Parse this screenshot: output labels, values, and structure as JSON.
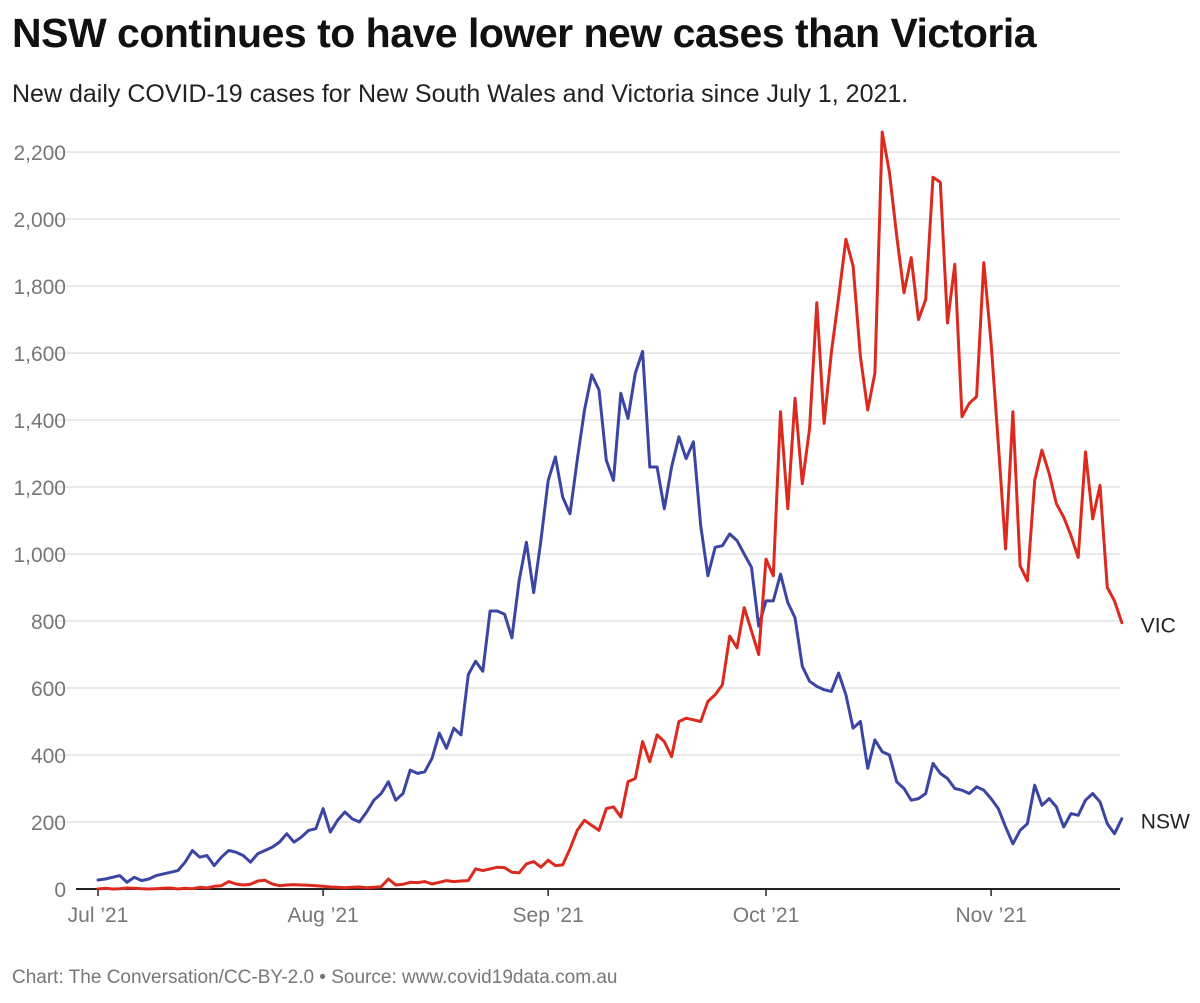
{
  "chart_data": {
    "type": "line",
    "title": "NSW continues to have lower new cases than Victoria",
    "subtitle": "New daily COVID-19 cases for New South Wales and Victoria since July 1, 2021.",
    "source": "Chart: The Conversation/CC-BY-2.0 • Source: www.covid19data.com.au",
    "xlabel": "",
    "ylabel": "",
    "x_start": "2021-07-01",
    "x_tick_labels": [
      "Jul ’21",
      "Aug ’21",
      "Sep ’21",
      "Oct ’21",
      "Nov ’21"
    ],
    "x_tick_days": [
      0,
      31,
      62,
      92,
      123
    ],
    "y_ticks": [
      0,
      200,
      400,
      600,
      800,
      1000,
      1200,
      1400,
      1600,
      1800,
      2000,
      2200
    ],
    "y_tick_labels": [
      "0",
      "200",
      "400",
      "600",
      "800",
      "1,000",
      "1,200",
      "1,400",
      "1,600",
      "1,800",
      "2,000",
      "2,200"
    ],
    "ylim": [
      0,
      2260
    ],
    "xlim": [
      0,
      138
    ],
    "grid": true,
    "colors": {
      "NSW": "#3b46a3",
      "VIC": "#dc2a1e",
      "grid": "#e3e3e3",
      "axis": "#222222"
    },
    "series": [
      {
        "name": "NSW",
        "label": "NSW",
        "values": [
          27,
          30,
          35,
          40,
          20,
          35,
          25,
          30,
          40,
          45,
          50,
          55,
          80,
          115,
          95,
          100,
          70,
          95,
          115,
          110,
          100,
          80,
          105,
          115,
          125,
          140,
          165,
          140,
          155,
          175,
          180,
          240,
          170,
          205,
          230,
          210,
          200,
          230,
          265,
          285,
          320,
          265,
          285,
          355,
          345,
          350,
          390,
          465,
          420,
          480,
          460,
          640,
          680,
          650,
          830,
          830,
          820,
          750,
          920,
          1035,
          885,
          1040,
          1220,
          1290,
          1170,
          1120,
          1280,
          1430,
          1535,
          1490,
          1280,
          1220,
          1480,
          1405,
          1540,
          1605,
          1260,
          1260,
          1135,
          1260,
          1350,
          1285,
          1335,
          1085,
          935,
          1020,
          1025,
          1060,
          1040,
          1000,
          960,
          785,
          860,
          860,
          940,
          855,
          810,
          665,
          620,
          605,
          595,
          590,
          645,
          580,
          480,
          500,
          360,
          445,
          410,
          400,
          320,
          300,
          265,
          270,
          285,
          375,
          345,
          330,
          300,
          295,
          285,
          305,
          295,
          270,
          240,
          185,
          135,
          175,
          195,
          310,
          250,
          270,
          245,
          185,
          225,
          220,
          265,
          285,
          260,
          195,
          165,
          210
        ]
      },
      {
        "name": "VIC",
        "label": "VIC",
        "values": [
          0,
          2,
          0,
          1,
          3,
          2,
          1,
          0,
          1,
          2,
          3,
          0,
          2,
          1,
          5,
          3,
          8,
          10,
          22,
          15,
          12,
          14,
          24,
          26,
          15,
          10,
          12,
          13,
          12,
          11,
          10,
          8,
          6,
          5,
          4,
          5,
          6,
          4,
          5,
          7,
          30,
          12,
          14,
          20,
          19,
          22,
          15,
          20,
          25,
          22,
          24,
          25,
          60,
          55,
          60,
          65,
          64,
          50,
          48,
          75,
          82,
          65,
          86,
          70,
          72,
          120,
          175,
          205,
          190,
          175,
          240,
          245,
          215,
          320,
          330,
          440,
          380,
          460,
          440,
          395,
          500,
          510,
          505,
          500,
          560,
          580,
          610,
          755,
          720,
          840,
          770,
          700,
          985,
          935,
          1425,
          1135,
          1465,
          1210,
          1375,
          1750,
          1390,
          1600,
          1765,
          1940,
          1860,
          1590,
          1430,
          1540,
          2260,
          2140,
          1950,
          1780,
          1885,
          1700,
          1760,
          2125,
          2110,
          1690,
          1865,
          1410,
          1450,
          1470,
          1870,
          1630,
          1330,
          1015,
          1425,
          965,
          920,
          1220,
          1310,
          1240,
          1150,
          1110,
          1055,
          990,
          1305,
          1105,
          1205,
          900,
          860,
          795
        ]
      }
    ]
  }
}
